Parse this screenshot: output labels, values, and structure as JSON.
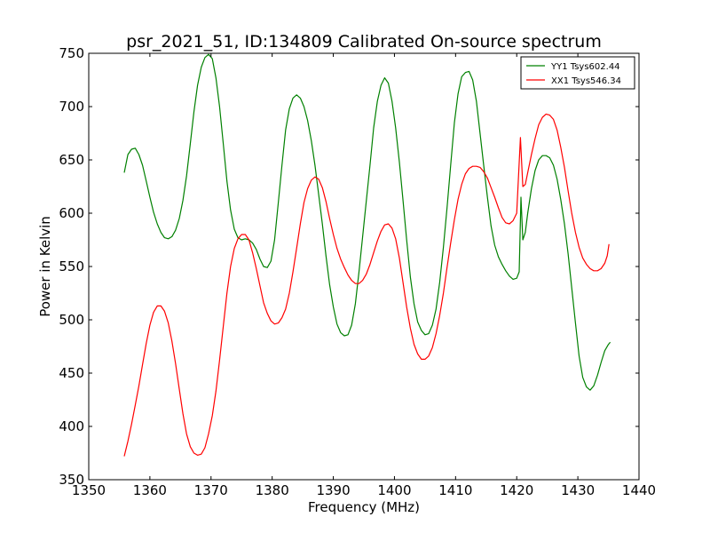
{
  "chart_data": {
    "type": "line",
    "title": "psr_2021_51, ID:134809 Calibrated On-source spectrum",
    "xlabel": "Frequency (MHz)",
    "ylabel": "Power in Kelvin",
    "xlim": [
      1350,
      1440
    ],
    "ylim": [
      350,
      750
    ],
    "xticks": [
      1350,
      1360,
      1370,
      1380,
      1390,
      1400,
      1410,
      1420,
      1430,
      1440
    ],
    "yticks": [
      350,
      400,
      450,
      500,
      550,
      600,
      650,
      700,
      750
    ],
    "grid": false,
    "legend_position": "top-right",
    "series": [
      {
        "name": "YY1 Tsys602.44",
        "color": "#008000",
        "points": [
          [
            1355.8,
            638
          ],
          [
            1356.4,
            655
          ],
          [
            1357.0,
            660
          ],
          [
            1357.6,
            661
          ],
          [
            1358.2,
            655
          ],
          [
            1358.8,
            645
          ],
          [
            1359.4,
            630
          ],
          [
            1360.0,
            615
          ],
          [
            1360.6,
            601
          ],
          [
            1361.2,
            590
          ],
          [
            1361.8,
            582
          ],
          [
            1362.4,
            577
          ],
          [
            1363.0,
            576
          ],
          [
            1363.6,
            578
          ],
          [
            1364.2,
            584
          ],
          [
            1364.8,
            595
          ],
          [
            1365.4,
            612
          ],
          [
            1366.0,
            635
          ],
          [
            1366.6,
            665
          ],
          [
            1367.2,
            695
          ],
          [
            1367.8,
            720
          ],
          [
            1368.4,
            737
          ],
          [
            1369.0,
            746
          ],
          [
            1369.6,
            749
          ],
          [
            1370.2,
            745
          ],
          [
            1370.8,
            727
          ],
          [
            1371.4,
            700
          ],
          [
            1372.0,
            665
          ],
          [
            1372.6,
            630
          ],
          [
            1373.2,
            603
          ],
          [
            1373.8,
            585
          ],
          [
            1374.4,
            577
          ],
          [
            1375.0,
            575
          ],
          [
            1375.6,
            576
          ],
          [
            1376.2,
            575
          ],
          [
            1376.8,
            572
          ],
          [
            1377.4,
            566
          ],
          [
            1378.0,
            557
          ],
          [
            1378.6,
            550
          ],
          [
            1379.2,
            549
          ],
          [
            1379.8,
            555
          ],
          [
            1380.4,
            575
          ],
          [
            1381.0,
            610
          ],
          [
            1381.6,
            645
          ],
          [
            1382.2,
            678
          ],
          [
            1382.8,
            698
          ],
          [
            1383.4,
            708
          ],
          [
            1384.0,
            711
          ],
          [
            1384.6,
            708
          ],
          [
            1385.2,
            700
          ],
          [
            1385.8,
            687
          ],
          [
            1386.4,
            668
          ],
          [
            1387.0,
            645
          ],
          [
            1387.6,
            618
          ],
          [
            1388.2,
            590
          ],
          [
            1388.8,
            560
          ],
          [
            1389.4,
            533
          ],
          [
            1390.0,
            512
          ],
          [
            1390.6,
            496
          ],
          [
            1391.2,
            488
          ],
          [
            1391.8,
            485
          ],
          [
            1392.4,
            486
          ],
          [
            1393.0,
            495
          ],
          [
            1393.6,
            515
          ],
          [
            1394.2,
            545
          ],
          [
            1394.8,
            578
          ],
          [
            1395.4,
            612
          ],
          [
            1396.0,
            645
          ],
          [
            1396.6,
            680
          ],
          [
            1397.2,
            705
          ],
          [
            1397.8,
            720
          ],
          [
            1398.4,
            727
          ],
          [
            1399.0,
            722
          ],
          [
            1399.6,
            705
          ],
          [
            1400.2,
            680
          ],
          [
            1400.8,
            648
          ],
          [
            1401.4,
            612
          ],
          [
            1402.0,
            575
          ],
          [
            1402.6,
            540
          ],
          [
            1403.2,
            515
          ],
          [
            1403.8,
            498
          ],
          [
            1404.4,
            490
          ],
          [
            1405.0,
            486
          ],
          [
            1405.6,
            487
          ],
          [
            1406.2,
            495
          ],
          [
            1406.8,
            510
          ],
          [
            1407.4,
            535
          ],
          [
            1408.0,
            568
          ],
          [
            1408.6,
            605
          ],
          [
            1409.2,
            645
          ],
          [
            1409.8,
            685
          ],
          [
            1410.4,
            712
          ],
          [
            1411.0,
            728
          ],
          [
            1411.6,
            732
          ],
          [
            1412.2,
            733
          ],
          [
            1412.8,
            725
          ],
          [
            1413.4,
            705
          ],
          [
            1414.0,
            675
          ],
          [
            1414.6,
            645
          ],
          [
            1415.2,
            615
          ],
          [
            1415.8,
            588
          ],
          [
            1416.4,
            570
          ],
          [
            1417.0,
            559
          ],
          [
            1417.6,
            552
          ],
          [
            1418.2,
            546
          ],
          [
            1418.8,
            541
          ],
          [
            1419.4,
            538
          ],
          [
            1420.0,
            539
          ],
          [
            1420.4,
            545
          ],
          [
            1420.7,
            615
          ],
          [
            1421.0,
            575
          ],
          [
            1421.4,
            582
          ],
          [
            1421.8,
            600
          ],
          [
            1422.4,
            623
          ],
          [
            1423.0,
            640
          ],
          [
            1423.6,
            650
          ],
          [
            1424.2,
            654
          ],
          [
            1424.8,
            654
          ],
          [
            1425.4,
            652
          ],
          [
            1426.0,
            645
          ],
          [
            1426.6,
            632
          ],
          [
            1427.2,
            613
          ],
          [
            1427.8,
            590
          ],
          [
            1428.4,
            562
          ],
          [
            1429.0,
            530
          ],
          [
            1429.6,
            497
          ],
          [
            1430.2,
            466
          ],
          [
            1430.8,
            446
          ],
          [
            1431.4,
            437
          ],
          [
            1432.0,
            434
          ],
          [
            1432.6,
            438
          ],
          [
            1433.2,
            448
          ],
          [
            1433.8,
            460
          ],
          [
            1434.4,
            471
          ],
          [
            1435.0,
            477
          ],
          [
            1435.3,
            479
          ]
        ]
      },
      {
        "name": "XX1 Tsys546.34",
        "color": "#ff0000",
        "points": [
          [
            1355.8,
            372
          ],
          [
            1356.4,
            386
          ],
          [
            1357.0,
            402
          ],
          [
            1357.6,
            420
          ],
          [
            1358.2,
            438
          ],
          [
            1358.8,
            458
          ],
          [
            1359.4,
            478
          ],
          [
            1360.0,
            495
          ],
          [
            1360.6,
            507
          ],
          [
            1361.2,
            513
          ],
          [
            1361.8,
            513
          ],
          [
            1362.4,
            508
          ],
          [
            1363.0,
            497
          ],
          [
            1363.6,
            480
          ],
          [
            1364.2,
            459
          ],
          [
            1364.8,
            435
          ],
          [
            1365.4,
            412
          ],
          [
            1366.0,
            393
          ],
          [
            1366.6,
            381
          ],
          [
            1367.2,
            375
          ],
          [
            1367.8,
            373
          ],
          [
            1368.4,
            374
          ],
          [
            1369.0,
            380
          ],
          [
            1369.6,
            393
          ],
          [
            1370.2,
            410
          ],
          [
            1370.8,
            433
          ],
          [
            1371.4,
            462
          ],
          [
            1372.0,
            494
          ],
          [
            1372.6,
            525
          ],
          [
            1373.2,
            550
          ],
          [
            1373.8,
            567
          ],
          [
            1374.4,
            576
          ],
          [
            1375.0,
            580
          ],
          [
            1375.6,
            580
          ],
          [
            1376.2,
            575
          ],
          [
            1376.8,
            563
          ],
          [
            1377.4,
            548
          ],
          [
            1378.0,
            532
          ],
          [
            1378.6,
            516
          ],
          [
            1379.2,
            506
          ],
          [
            1379.8,
            499
          ],
          [
            1380.4,
            496
          ],
          [
            1381.0,
            497
          ],
          [
            1381.6,
            502
          ],
          [
            1382.2,
            510
          ],
          [
            1382.8,
            525
          ],
          [
            1383.4,
            545
          ],
          [
            1384.0,
            567
          ],
          [
            1384.6,
            590
          ],
          [
            1385.2,
            610
          ],
          [
            1385.8,
            623
          ],
          [
            1386.4,
            631
          ],
          [
            1387.0,
            634
          ],
          [
            1387.6,
            632
          ],
          [
            1388.2,
            624
          ],
          [
            1388.8,
            611
          ],
          [
            1389.4,
            595
          ],
          [
            1390.0,
            580
          ],
          [
            1390.6,
            567
          ],
          [
            1391.2,
            557
          ],
          [
            1391.8,
            549
          ],
          [
            1392.4,
            542
          ],
          [
            1393.0,
            537
          ],
          [
            1393.6,
            534
          ],
          [
            1394.2,
            534
          ],
          [
            1394.8,
            537
          ],
          [
            1395.4,
            543
          ],
          [
            1396.0,
            552
          ],
          [
            1396.6,
            563
          ],
          [
            1397.2,
            574
          ],
          [
            1397.8,
            583
          ],
          [
            1398.4,
            589
          ],
          [
            1399.0,
            590
          ],
          [
            1399.6,
            586
          ],
          [
            1400.2,
            576
          ],
          [
            1400.8,
            558
          ],
          [
            1401.4,
            535
          ],
          [
            1402.0,
            512
          ],
          [
            1402.6,
            492
          ],
          [
            1403.2,
            477
          ],
          [
            1403.8,
            468
          ],
          [
            1404.4,
            463
          ],
          [
            1405.0,
            463
          ],
          [
            1405.6,
            466
          ],
          [
            1406.2,
            474
          ],
          [
            1406.8,
            487
          ],
          [
            1407.4,
            504
          ],
          [
            1408.0,
            525
          ],
          [
            1408.6,
            549
          ],
          [
            1409.2,
            572
          ],
          [
            1409.8,
            594
          ],
          [
            1410.4,
            613
          ],
          [
            1411.0,
            627
          ],
          [
            1411.6,
            637
          ],
          [
            1412.2,
            642
          ],
          [
            1412.8,
            644
          ],
          [
            1413.4,
            644
          ],
          [
            1414.0,
            643
          ],
          [
            1414.6,
            639
          ],
          [
            1415.2,
            633
          ],
          [
            1415.8,
            624
          ],
          [
            1416.4,
            615
          ],
          [
            1417.0,
            605
          ],
          [
            1417.6,
            596
          ],
          [
            1418.2,
            591
          ],
          [
            1418.8,
            590
          ],
          [
            1419.4,
            593
          ],
          [
            1420.0,
            600
          ],
          [
            1420.6,
            671
          ],
          [
            1421.0,
            625
          ],
          [
            1421.4,
            627
          ],
          [
            1421.8,
            638
          ],
          [
            1422.4,
            655
          ],
          [
            1423.0,
            670
          ],
          [
            1423.6,
            683
          ],
          [
            1424.2,
            690
          ],
          [
            1424.8,
            693
          ],
          [
            1425.4,
            692
          ],
          [
            1426.0,
            688
          ],
          [
            1426.6,
            678
          ],
          [
            1427.2,
            662
          ],
          [
            1427.8,
            643
          ],
          [
            1428.4,
            621
          ],
          [
            1429.0,
            600
          ],
          [
            1429.6,
            582
          ],
          [
            1430.2,
            568
          ],
          [
            1430.8,
            558
          ],
          [
            1431.4,
            552
          ],
          [
            1432.0,
            548
          ],
          [
            1432.6,
            546
          ],
          [
            1433.2,
            546
          ],
          [
            1433.8,
            548
          ],
          [
            1434.4,
            553
          ],
          [
            1434.8,
            560
          ],
          [
            1435.1,
            571
          ]
        ]
      }
    ]
  }
}
